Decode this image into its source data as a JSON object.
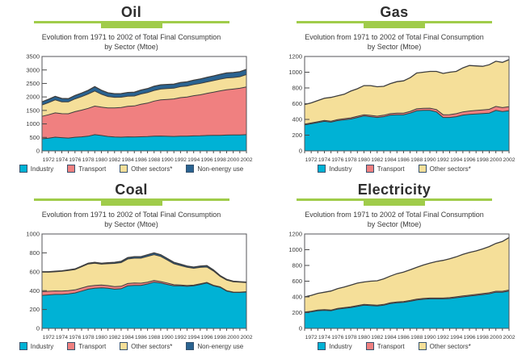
{
  "page": {
    "background": "#ffffff"
  },
  "colors": {
    "industry": "#00b2d5",
    "transport": "#f08080",
    "other_sectors": "#f5df99",
    "non_energy": "#2a6391",
    "title_underline_green": "#a0cc4a",
    "plot_border": "#55565a",
    "boundary_line": "#3d3d3d",
    "text": "#3a3a3a"
  },
  "chart_data": [
    {
      "id": "oil",
      "type": "area",
      "title": "Oil",
      "subtitle1": "Evolution from 1971 to 2002 of Total Final Consumption",
      "subtitle2": "by Sector (Mtoe)",
      "xlabel": "",
      "ylabel": "",
      "grid": false,
      "legend_position": "bottom",
      "ylim": [
        0,
        3500
      ],
      "ytick_step": 500,
      "x": [
        1971,
        1972,
        1973,
        1974,
        1975,
        1976,
        1977,
        1978,
        1979,
        1980,
        1981,
        1982,
        1983,
        1984,
        1985,
        1986,
        1987,
        1988,
        1989,
        1990,
        1991,
        1992,
        1993,
        1994,
        1995,
        1996,
        1997,
        1998,
        1999,
        2000,
        2001,
        2002
      ],
      "xtick_labels": [
        1972,
        1974,
        1976,
        1978,
        1980,
        1982,
        1984,
        1986,
        1988,
        1990,
        1992,
        1994,
        1996,
        1998,
        2000,
        2002
      ],
      "stacked": true,
      "series": [
        {
          "name": "Industry",
          "color": "#00b2d5",
          "values": [
            450,
            470,
            510,
            490,
            475,
            505,
            520,
            545,
            600,
            570,
            535,
            515,
            510,
            520,
            515,
            525,
            530,
            545,
            550,
            540,
            535,
            545,
            545,
            555,
            560,
            570,
            575,
            575,
            585,
            590,
            590,
            600
          ]
        },
        {
          "name": "Transport",
          "color": "#f08080",
          "values": [
            830,
            870,
            900,
            890,
            900,
            950,
            990,
            1030,
            1060,
            1050,
            1060,
            1080,
            1100,
            1130,
            1150,
            1200,
            1240,
            1300,
            1340,
            1370,
            1390,
            1430,
            1450,
            1490,
            1520,
            1560,
            1600,
            1650,
            1680,
            1700,
            1730,
            1770
          ]
        },
        {
          "name": "Other sectors*",
          "color": "#f5df99",
          "values": [
            420,
            450,
            480,
            440,
            440,
            470,
            500,
            530,
            560,
            480,
            420,
            390,
            380,
            375,
            370,
            385,
            390,
            395,
            400,
            400,
            400,
            405,
            410,
            415,
            420,
            425,
            430,
            435,
            440,
            430,
            430,
            460
          ]
        },
        {
          "name": "Non-energy use",
          "color": "#2a6391",
          "values": [
            120,
            125,
            130,
            125,
            120,
            130,
            135,
            140,
            160,
            150,
            140,
            135,
            135,
            140,
            140,
            145,
            150,
            155,
            160,
            155,
            150,
            155,
            155,
            160,
            165,
            170,
            175,
            180,
            185,
            185,
            185,
            190
          ]
        }
      ]
    },
    {
      "id": "gas",
      "type": "area",
      "title": "Gas",
      "subtitle1": "Evolution from 1971 to 2002 of Total Final Consumption",
      "subtitle2": "by Sector (Mtoe)",
      "xlabel": "",
      "ylabel": "",
      "grid": false,
      "legend_position": "bottom",
      "ylim": [
        0,
        1200
      ],
      "ytick_step": 200,
      "x": [
        1971,
        1972,
        1973,
        1974,
        1975,
        1976,
        1977,
        1978,
        1979,
        1980,
        1981,
        1982,
        1983,
        1984,
        1985,
        1986,
        1987,
        1988,
        1989,
        1990,
        1991,
        1992,
        1993,
        1994,
        1995,
        1996,
        1997,
        1998,
        1999,
        2000,
        2001,
        2002
      ],
      "xtick_labels": [
        1972,
        1974,
        1976,
        1978,
        1980,
        1982,
        1984,
        1986,
        1988,
        1990,
        1992,
        1994,
        1996,
        1998,
        2000,
        2002
      ],
      "stacked": true,
      "series": [
        {
          "name": "Industry",
          "color": "#00b2d5",
          "values": [
            330,
            345,
            360,
            375,
            365,
            385,
            395,
            405,
            425,
            445,
            435,
            425,
            435,
            455,
            460,
            460,
            480,
            510,
            515,
            515,
            495,
            425,
            425,
            435,
            455,
            465,
            470,
            475,
            480,
            515,
            500,
            510
          ]
        },
        {
          "name": "Transport",
          "color": "#f08080",
          "values": [
            10,
            10,
            10,
            12,
            12,
            12,
            14,
            14,
            15,
            15,
            16,
            16,
            18,
            18,
            20,
            20,
            22,
            24,
            26,
            28,
            30,
            34,
            36,
            38,
            40,
            42,
            44,
            46,
            48,
            50,
            50,
            52
          ]
        },
        {
          "name": "Other sectors*",
          "color": "#f5df99",
          "values": [
            250,
            255,
            270,
            283,
            303,
            303,
            311,
            341,
            350,
            370,
            379,
            374,
            367,
            382,
            400,
            410,
            428,
            456,
            459,
            467,
            485,
            526,
            539,
            537,
            560,
            578,
            566,
            554,
            567,
            575,
            575,
            598
          ]
        }
      ]
    },
    {
      "id": "coal",
      "type": "area",
      "title": "Coal",
      "subtitle1": "Evolution from 1971 to 2002 of Total Final Consumption",
      "subtitle2": "by Sector (Mtoe)",
      "xlabel": "",
      "ylabel": "",
      "grid": false,
      "legend_position": "bottom",
      "ylim": [
        0,
        1000
      ],
      "ytick_step": 200,
      "x": [
        1971,
        1972,
        1973,
        1974,
        1975,
        1976,
        1977,
        1978,
        1979,
        1980,
        1981,
        1982,
        1983,
        1984,
        1985,
        1986,
        1987,
        1988,
        1989,
        1990,
        1991,
        1992,
        1993,
        1994,
        1995,
        1996,
        1997,
        1998,
        1999,
        2000,
        2001,
        2002
      ],
      "xtick_labels": [
        1972,
        1974,
        1976,
        1978,
        1980,
        1982,
        1984,
        1986,
        1988,
        1990,
        1992,
        1994,
        1996,
        1998,
        2000,
        2002
      ],
      "stacked": true,
      "series": [
        {
          "name": "Industry",
          "color": "#00b2d5",
          "values": [
            350,
            355,
            360,
            360,
            365,
            375,
            395,
            415,
            425,
            430,
            425,
            415,
            420,
            450,
            455,
            455,
            470,
            490,
            480,
            465,
            450,
            450,
            445,
            450,
            465,
            480,
            450,
            435,
            395,
            380,
            380,
            385
          ]
        },
        {
          "name": "Transport",
          "color": "#f08080",
          "values": [
            40,
            38,
            37,
            36,
            35,
            33,
            32,
            31,
            30,
            30,
            28,
            27,
            26,
            25,
            25,
            24,
            20,
            18,
            16,
            15,
            12,
            10,
            9,
            8,
            8,
            7,
            6,
            5,
            5,
            5,
            4,
            4
          ]
        },
        {
          "name": "Other sectors*",
          "color": "#f5df99",
          "values": [
            205,
            202,
            202,
            208,
            214,
            215,
            225,
            236,
            236,
            220,
            232,
            246,
            251,
            260,
            264,
            265,
            272,
            272,
            266,
            244,
            223,
            206,
            193,
            179,
            173,
            163,
            152,
            110,
            112,
            109,
            106,
            96
          ]
        },
        {
          "name": "Non-energy use",
          "color": "#2a6391",
          "values": [
            5,
            5,
            6,
            6,
            6,
            7,
            8,
            8,
            9,
            10,
            10,
            12,
            13,
            15,
            16,
            16,
            18,
            20,
            18,
            16,
            15,
            14,
            13,
            13,
            14,
            15,
            12,
            10,
            8,
            6,
            5,
            5
          ]
        }
      ]
    },
    {
      "id": "electricity",
      "type": "area",
      "title": "Electricity",
      "subtitle1": "Evolution from 1971 to 2002 of Total Final Consumption",
      "subtitle2": "by Sector (Mtoe)",
      "xlabel": "",
      "ylabel": "",
      "grid": false,
      "legend_position": "bottom",
      "ylim": [
        0,
        1200
      ],
      "ytick_step": 200,
      "x": [
        1971,
        1972,
        1973,
        1974,
        1975,
        1976,
        1977,
        1978,
        1979,
        1980,
        1981,
        1982,
        1983,
        1984,
        1985,
        1986,
        1987,
        1988,
        1989,
        1990,
        1991,
        1992,
        1993,
        1994,
        1995,
        1996,
        1997,
        1998,
        1999,
        2000,
        2001,
        2002
      ],
      "xtick_labels": [
        1972,
        1974,
        1976,
        1978,
        1980,
        1982,
        1984,
        1986,
        1988,
        1990,
        1992,
        1994,
        1996,
        1998,
        2000,
        2002
      ],
      "stacked": true,
      "series": [
        {
          "name": "Industry",
          "color": "#00b2d5",
          "values": [
            200,
            210,
            225,
            230,
            225,
            245,
            255,
            265,
            280,
            295,
            290,
            285,
            295,
            315,
            325,
            330,
            345,
            360,
            370,
            375,
            375,
            375,
            380,
            390,
            400,
            410,
            420,
            430,
            440,
            460,
            460,
            475
          ]
        },
        {
          "name": "Transport",
          "color": "#f08080",
          "values": [
            8,
            8,
            8,
            8,
            8,
            9,
            9,
            9,
            9,
            10,
            10,
            10,
            10,
            10,
            10,
            10,
            10,
            11,
            11,
            11,
            11,
            11,
            11,
            11,
            12,
            12,
            12,
            12,
            12,
            12,
            12,
            12
          ]
        },
        {
          "name": "Other sectors*",
          "color": "#f5df99",
          "values": [
            192,
            202,
            212,
            222,
            242,
            251,
            261,
            276,
            286,
            285,
            300,
            310,
            325,
            340,
            360,
            375,
            390,
            404,
            424,
            444,
            464,
            479,
            494,
            509,
            528,
            543,
            553,
            568,
            588,
            608,
            633,
            668
          ]
        }
      ]
    }
  ]
}
